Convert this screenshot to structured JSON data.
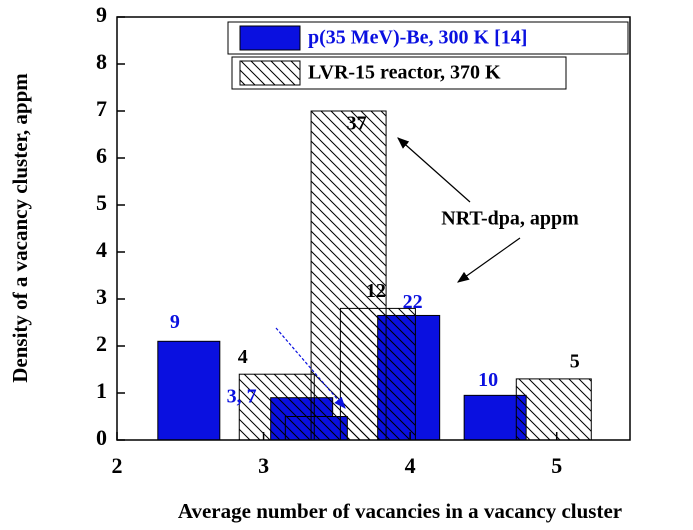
{
  "chart_data": {
    "type": "bar",
    "xlabel": "Average number of vacancies in a vacancy cluster",
    "ylabel": "Density of a vacancy cluster, appm",
    "xlim": [
      2,
      5.5
    ],
    "ylim": [
      0,
      9
    ],
    "xticks": [
      2,
      3,
      4,
      5
    ],
    "yticks": [
      0,
      1,
      2,
      3,
      4,
      5,
      6,
      7,
      8,
      9
    ],
    "legend": "top-right",
    "annotation": "NRT-dpa, appm",
    "series": [
      {
        "name": "p(35 MeV)-Be, 300 K [14]",
        "color": "#0a10e0",
        "fill": "solid",
        "x": [
          2.49,
          3.26,
          3.36,
          3.99,
          4.58
        ],
        "values": [
          2.1,
          0.9,
          0.5,
          2.65,
          0.95
        ],
        "dpa_labels": [
          "9",
          "3, 7",
          null,
          "22",
          "10"
        ]
      },
      {
        "name": "LVR-15 reactor, 370 K",
        "color": "#000000",
        "fill": "hatch",
        "x": [
          3.09,
          3.58,
          3.78,
          4.98
        ],
        "values": [
          1.4,
          7.0,
          2.8,
          1.3
        ],
        "dpa_labels": [
          "4",
          "37",
          "12",
          "5"
        ]
      }
    ]
  }
}
